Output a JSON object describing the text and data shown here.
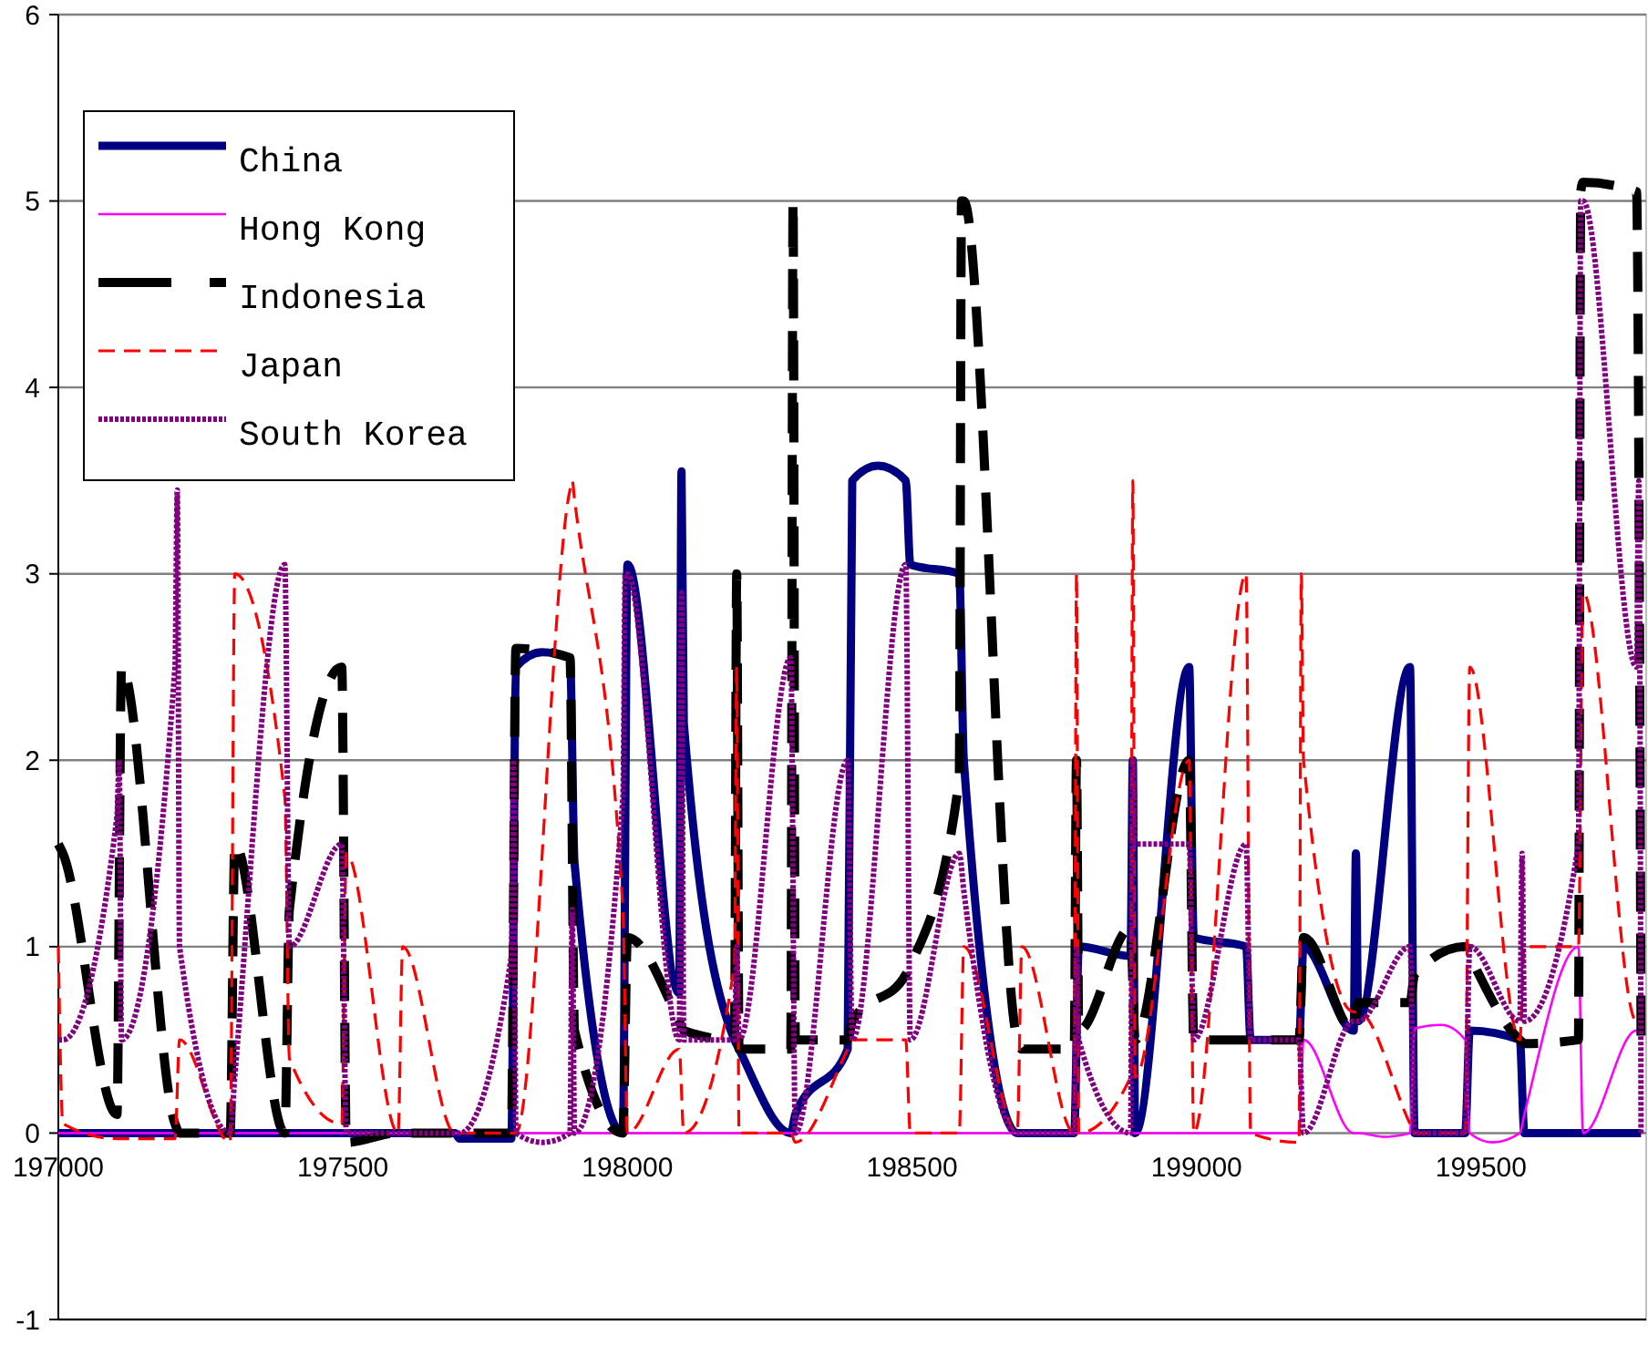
{
  "chart_data": {
    "type": "line",
    "xlim": [
      197000,
      199790
    ],
    "ylim": [
      -1,
      6
    ],
    "xticks": [
      197000,
      197500,
      198000,
      198500,
      199000,
      199500
    ],
    "yticks": [
      -1,
      0,
      1,
      2,
      3,
      4,
      5,
      6
    ],
    "grid": "y",
    "legend": "top left",
    "series": [
      {
        "name": "China",
        "color": "#000080",
        "line_style": "solid",
        "x": [
          197000,
          197697,
          197705,
          197796,
          197804,
          197850,
          197899,
          197907,
          197992,
          198000,
          198091,
          198095,
          198099,
          198188,
          198196,
          198287,
          198295,
          198387,
          198395,
          198440,
          198489,
          198497,
          198583,
          198591,
          198685,
          198693,
          198785,
          198793,
          198884,
          198888,
          198892,
          198987,
          198995,
          199087,
          199095,
          199180,
          199188,
          199276,
          199280,
          199284,
          199375,
          199383,
          199472,
          199480,
          199568,
          199576,
          199781
        ],
        "values": [
          0,
          0,
          -0.03,
          -0.03,
          2.5,
          2.58,
          2.55,
          1.45,
          0,
          3.05,
          0.75,
          3.55,
          2.2,
          0.5,
          0.45,
          0,
          0.1,
          0.45,
          3.5,
          3.58,
          3.5,
          3.05,
          3,
          2,
          0,
          0,
          0,
          1,
          0.95,
          2,
          0,
          2.5,
          1.05,
          1,
          0.5,
          0.5,
          1,
          0.55,
          1.5,
          0.6,
          2.5,
          0,
          0,
          0.55,
          0.5,
          0,
          0
        ]
      },
      {
        "name": "Hong Kong",
        "color": "#ff00ff",
        "line_style": "solid",
        "x": [
          197000,
          199180,
          199188,
          199276,
          199284,
          199330,
          199375,
          199383,
          199430,
          199472,
          199480,
          199520,
          199568,
          199576,
          199671,
          199679,
          199773,
          199781
        ],
        "values": [
          0,
          0,
          0.5,
          0,
          0,
          -0.02,
          0,
          0.56,
          0.58,
          0.5,
          0,
          -0.05,
          0,
          0.1,
          1,
          0,
          0.55,
          0.55
        ]
      },
      {
        "name": "Indonesia",
        "color": "#000000",
        "line_style": "dashed",
        "x": [
          197000,
          197008,
          197103,
          197111,
          197205,
          197213,
          197302,
          197310,
          197398,
          197406,
          197498,
          197506,
          197597,
          197605,
          197697,
          197705,
          197796,
          197804,
          197899,
          197907,
          197992,
          198000,
          198091,
          198099,
          198188,
          198192,
          198196,
          198287,
          198291,
          198295,
          198387,
          198395,
          198489,
          198497,
          198583,
          198587,
          198591,
          198685,
          198693,
          198785,
          198789,
          198793,
          198884,
          198892,
          198987,
          198995,
          199087,
          199095,
          199180,
          199188,
          199276,
          199284,
          199375,
          199383,
          199472,
          199480,
          199568,
          199576,
          199671,
          199675,
          199679,
          199773,
          199781
        ],
        "values": [
          1.55,
          1.5,
          0.1,
          2.5,
          0.05,
          0,
          0,
          1.55,
          0,
          1.2,
          2.5,
          -0.05,
          0,
          0,
          0,
          0,
          0,
          2.6,
          2.55,
          0.55,
          0,
          1.05,
          0.6,
          0.55,
          0.5,
          3,
          0.45,
          0.45,
          5,
          0.5,
          0.5,
          0.6,
          0.85,
          0.9,
          1.9,
          5,
          5,
          0.5,
          0.45,
          0.45,
          2,
          0.55,
          1.1,
          0.5,
          2,
          0.5,
          0.5,
          0.5,
          0.5,
          1.05,
          0.55,
          0.7,
          0.7,
          0.85,
          1,
          0.95,
          0.5,
          0.48,
          0.5,
          5.05,
          5.1,
          5.05,
          0.5
        ]
      },
      {
        "name": "Japan",
        "color": "#ff0000",
        "line_style": "dashed",
        "x": [
          197000,
          197008,
          197103,
          197111,
          197205,
          197213,
          197302,
          197310,
          197398,
          197406,
          197498,
          197506,
          197597,
          197605,
          197697,
          197796,
          197804,
          197899,
          197903,
          197907,
          197992,
          198000,
          198091,
          198099,
          198188,
          198192,
          198196,
          198287,
          198295,
          198387,
          198395,
          198489,
          198497,
          198583,
          198591,
          198685,
          198693,
          198785,
          198789,
          198793,
          198884,
          198888,
          198892,
          198987,
          198995,
          199087,
          199095,
          199180,
          199184,
          199188,
          199276,
          199284,
          199375,
          199383,
          199472,
          199480,
          199568,
          199576,
          199671,
          199679,
          199773,
          199781
        ],
        "values": [
          1,
          0.05,
          -0.03,
          -0.03,
          -0.03,
          0.5,
          -0.05,
          3,
          1.8,
          0.4,
          0.05,
          1.5,
          0,
          1,
          0,
          0,
          0,
          3.45,
          3.5,
          3.4,
          1.2,
          0,
          0.45,
          0,
          0.9,
          2.5,
          0,
          0,
          -0.05,
          0.45,
          0.5,
          0.5,
          0,
          0,
          1,
          0,
          1,
          0,
          3,
          0,
          0.3,
          3.5,
          0.3,
          2,
          0,
          3,
          0,
          -0.05,
          3,
          2,
          0.65,
          0.65,
          0.05,
          0,
          0,
          2.5,
          0.5,
          1,
          1,
          2.9,
          0.6,
          0.6
        ]
      },
      {
        "name": "South Korea",
        "color": "#800080",
        "line_style": "dotted",
        "x": [
          197000,
          197008,
          197103,
          197107,
          197111,
          197205,
          197209,
          197213,
          197302,
          197310,
          197398,
          197406,
          197498,
          197506,
          197697,
          197705,
          197796,
          197800,
          197804,
          197850,
          197899,
          197903,
          197907,
          197992,
          197996,
          198000,
          198091,
          198095,
          198099,
          198188,
          198192,
          198196,
          198287,
          198295,
          198387,
          198395,
          198489,
          198497,
          198583,
          198591,
          198685,
          198693,
          198785,
          198789,
          198793,
          198884,
          198888,
          198892,
          198987,
          198995,
          199087,
          199095,
          199180,
          199188,
          199276,
          199284,
          199375,
          199383,
          199472,
          199480,
          199568,
          199572,
          199576,
          199671,
          199675,
          199679,
          199773,
          199777,
          199781
        ],
        "values": [
          0.5,
          0.5,
          1.7,
          2,
          0.5,
          2.5,
          3.45,
          1,
          0,
          0.3,
          3.05,
          1,
          1.55,
          0,
          0,
          0,
          0.95,
          2,
          0,
          -0.05,
          0,
          1.2,
          0,
          1.8,
          3,
          3,
          0.5,
          2.9,
          0.5,
          0.5,
          1,
          0.5,
          2.55,
          0,
          2,
          0.5,
          3.05,
          0.5,
          1.5,
          1.3,
          0,
          0,
          0,
          1,
          0.5,
          0,
          2,
          1.55,
          1.55,
          0.5,
          1.55,
          0.5,
          0.5,
          0,
          0.6,
          0.6,
          1,
          0,
          0,
          1,
          0.6,
          1.5,
          0.6,
          1.55,
          5,
          5,
          2.5,
          3.5,
          0
        ]
      }
    ]
  }
}
